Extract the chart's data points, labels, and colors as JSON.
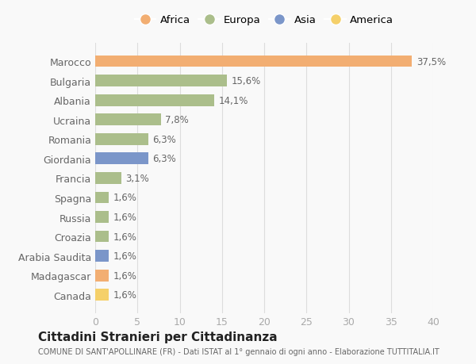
{
  "categories": [
    "Marocco",
    "Bulgaria",
    "Albania",
    "Ucraina",
    "Romania",
    "Giordania",
    "Francia",
    "Spagna",
    "Russia",
    "Croazia",
    "Arabia Saudita",
    "Madagascar",
    "Canada"
  ],
  "values": [
    37.5,
    15.6,
    14.1,
    7.8,
    6.3,
    6.3,
    3.1,
    1.6,
    1.6,
    1.6,
    1.6,
    1.6,
    1.6
  ],
  "labels": [
    "37,5%",
    "15,6%",
    "14,1%",
    "7,8%",
    "6,3%",
    "6,3%",
    "3,1%",
    "1,6%",
    "1,6%",
    "1,6%",
    "1,6%",
    "1,6%",
    "1,6%"
  ],
  "colors": [
    "#F2AE72",
    "#ABBE8B",
    "#ABBE8B",
    "#ABBE8B",
    "#ABBE8B",
    "#7B96C9",
    "#ABBE8B",
    "#ABBE8B",
    "#ABBE8B",
    "#ABBE8B",
    "#7B96C9",
    "#F2AE72",
    "#F5D06A"
  ],
  "legend": [
    {
      "label": "Africa",
      "color": "#F2AE72"
    },
    {
      "label": "Europa",
      "color": "#ABBE8B"
    },
    {
      "label": "Asia",
      "color": "#7B96C9"
    },
    {
      "label": "America",
      "color": "#F5D06A"
    }
  ],
  "xlim": [
    0,
    40
  ],
  "xticks": [
    0,
    5,
    10,
    15,
    20,
    25,
    30,
    35,
    40
  ],
  "title": "Cittadini Stranieri per Cittadinanza",
  "subtitle": "COMUNE DI SANT'APOLLINARE (FR) - Dati ISTAT al 1° gennaio di ogni anno - Elaborazione TUTTITALIA.IT",
  "bg_color": "#f9f9f9",
  "grid_color": "#dddddd"
}
